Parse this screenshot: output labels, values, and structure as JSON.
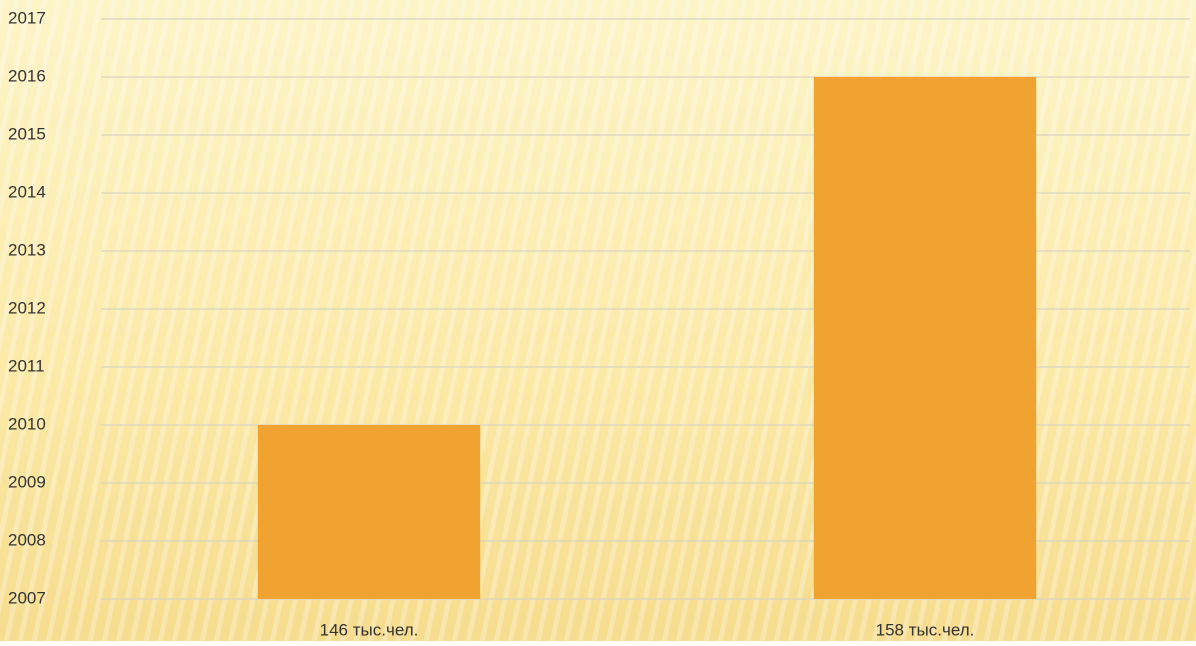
{
  "chart_data": {
    "type": "bar",
    "categories": [
      "146 тыс.чел.",
      "158 тыс.чел."
    ],
    "values": [
      2010,
      2016
    ],
    "color": "#f0a330",
    "ylim": [
      2007,
      2017
    ],
    "yticks": [
      2007,
      2008,
      2009,
      2010,
      2011,
      2012,
      2013,
      2014,
      2015,
      2016,
      2017
    ],
    "grid": true
  }
}
